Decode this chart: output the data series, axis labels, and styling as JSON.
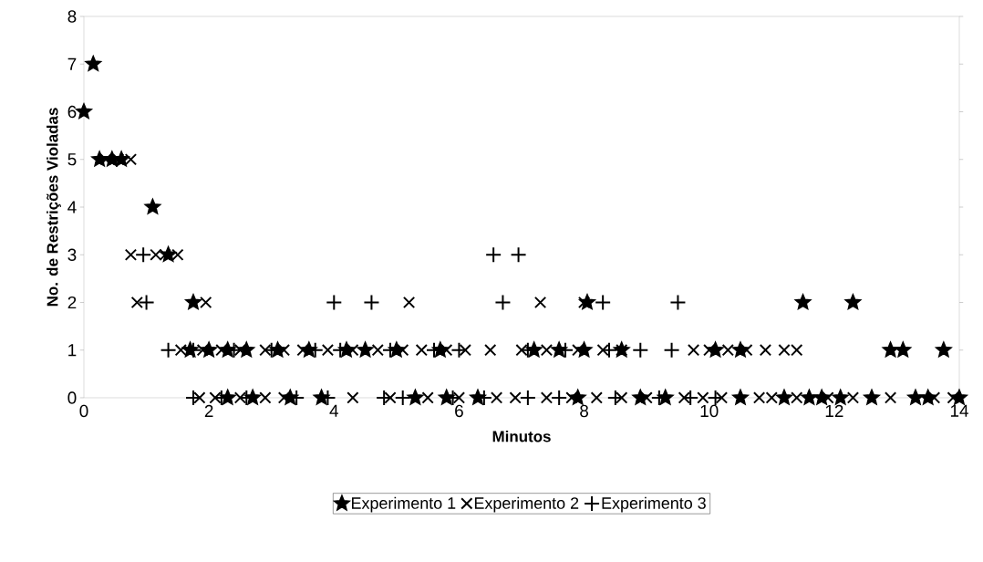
{
  "chart_data": {
    "type": "scatter",
    "xlabel": "Minutos",
    "ylabel": "No. de Restrições Violadas",
    "xlim": [
      0,
      14
    ],
    "ylim": [
      0,
      8
    ],
    "xticks": [
      0,
      2,
      4,
      6,
      8,
      10,
      12,
      14
    ],
    "yticks": [
      0,
      1,
      2,
      3,
      4,
      5,
      6,
      7,
      8
    ],
    "grid": false,
    "legend": "bottom",
    "series": [
      {
        "name": "Experimento 1",
        "color": "#000000",
        "marker": "star",
        "x": [
          0,
          0.15,
          0.25,
          0.45,
          0.6,
          1.1,
          1.35,
          1.75,
          8.05,
          11.5,
          12.3,
          1.7,
          2.0,
          2.3,
          2.6,
          3.1,
          3.6,
          4.2,
          4.5,
          5.0,
          5.7,
          7.2,
          7.6,
          8.0,
          8.6,
          10.1,
          10.5,
          12.9,
          13.1,
          13.75,
          2.3,
          2.7,
          3.3,
          3.8,
          5.3,
          5.8,
          6.3,
          7.9,
          8.9,
          9.3,
          10.5,
          11.2,
          11.6,
          11.8,
          12.1,
          12.6,
          13.3,
          13.5,
          14.0
        ],
        "values": [
          6,
          7,
          5,
          5,
          5,
          4,
          3,
          2,
          2,
          2,
          2,
          1,
          1,
          1,
          1,
          1,
          1,
          1,
          1,
          1,
          1,
          1,
          1,
          1,
          1,
          1,
          1,
          1,
          1,
          1,
          0,
          0,
          0,
          0,
          0,
          0,
          0,
          0,
          0,
          0,
          0,
          0,
          0,
          0,
          0,
          0,
          0,
          0,
          0
        ]
      },
      {
        "name": "Experimento 2",
        "color": "#000000",
        "marker": "cross",
        "x": [
          0.35,
          0.55,
          0.75,
          0.75,
          1.15,
          1.3,
          1.5,
          0.85,
          1.95,
          5.2,
          7.3,
          8.0,
          1.55,
          1.9,
          2.2,
          2.5,
          2.9,
          3.2,
          3.5,
          3.9,
          4.3,
          4.7,
          5.1,
          5.4,
          5.8,
          6.1,
          6.5,
          7.0,
          7.4,
          7.9,
          8.3,
          8.6,
          9.75,
          10.0,
          10.3,
          10.6,
          10.9,
          11.2,
          11.4,
          1.85,
          2.1,
          2.5,
          2.9,
          3.2,
          4.3,
          4.9,
          5.5,
          6.0,
          6.6,
          6.9,
          7.4,
          7.8,
          8.2,
          8.6,
          9.0,
          9.6,
          9.9,
          10.2,
          10.8,
          11.0,
          11.4,
          11.9,
          12.3,
          12.9,
          13.6,
          13.9
        ],
        "values": [
          5,
          5,
          5,
          3,
          3,
          3,
          3,
          2,
          2,
          2,
          2,
          2,
          1,
          1,
          1,
          1,
          1,
          1,
          1,
          1,
          1,
          1,
          1,
          1,
          1,
          1,
          1,
          1,
          1,
          1,
          1,
          1,
          1,
          1,
          1,
          1,
          1,
          1,
          1,
          0,
          0,
          0,
          0,
          0,
          0,
          0,
          0,
          0,
          0,
          0,
          0,
          0,
          0,
          0,
          0,
          0,
          0,
          0,
          0,
          0,
          0,
          0,
          0,
          0,
          0,
          0
        ]
      },
      {
        "name": "Experimento 3",
        "color": "#000000",
        "marker": "plus",
        "x": [
          0.95,
          6.55,
          6.95,
          1.0,
          4.0,
          4.6,
          6.7,
          8.3,
          9.5,
          1.35,
          1.75,
          2.4,
          3.0,
          3.7,
          4.1,
          4.9,
          5.6,
          6.0,
          7.1,
          7.7,
          8.4,
          8.9,
          9.4,
          1.75,
          2.2,
          2.6,
          3.4,
          3.9,
          4.8,
          5.1,
          5.9,
          6.4,
          7.1,
          7.6,
          8.5,
          9.2,
          9.7,
          10.1
        ],
        "values": [
          3,
          3,
          3,
          2,
          2,
          2,
          2,
          2,
          2,
          1,
          1,
          1,
          1,
          1,
          1,
          1,
          1,
          1,
          1,
          1,
          1,
          1,
          1,
          0,
          0,
          0,
          0,
          0,
          0,
          0,
          0,
          0,
          0,
          0,
          0,
          0,
          0,
          0
        ]
      }
    ]
  }
}
